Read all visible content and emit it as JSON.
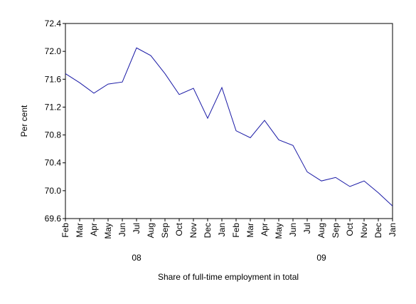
{
  "chart_data": {
    "type": "line",
    "title": "",
    "xlabel": "Share of full-time employment in total",
    "ylabel": "Per cent",
    "ylim": [
      69.6,
      72.4
    ],
    "yticks": [
      69.6,
      70.0,
      70.4,
      70.8,
      71.2,
      71.6,
      72.0,
      72.4
    ],
    "grid": false,
    "line_color": "#1a1aa6",
    "x": [
      "Feb",
      "Mar",
      "Apr",
      "May",
      "Jun",
      "Jul",
      "Aug",
      "Sep",
      "Oct",
      "Nov",
      "Dec",
      "Jan",
      "Feb",
      "Mar",
      "Apr",
      "May",
      "Jun",
      "Jul",
      "Aug",
      "Sep",
      "Oct",
      "Nov",
      "Dec",
      "Jan"
    ],
    "year_labels": [
      {
        "label": "08",
        "at": "Jul"
      },
      {
        "label": "09",
        "at": "Aug"
      }
    ],
    "series": [
      {
        "values": [
          71.68,
          71.55,
          71.4,
          71.53,
          71.56,
          72.05,
          71.94,
          71.68,
          71.38,
          71.47,
          71.04,
          71.48,
          70.86,
          70.76,
          71.01,
          70.73,
          70.65,
          70.27,
          70.14,
          70.19,
          70.06,
          70.14,
          69.97,
          69.78
        ]
      }
    ]
  }
}
